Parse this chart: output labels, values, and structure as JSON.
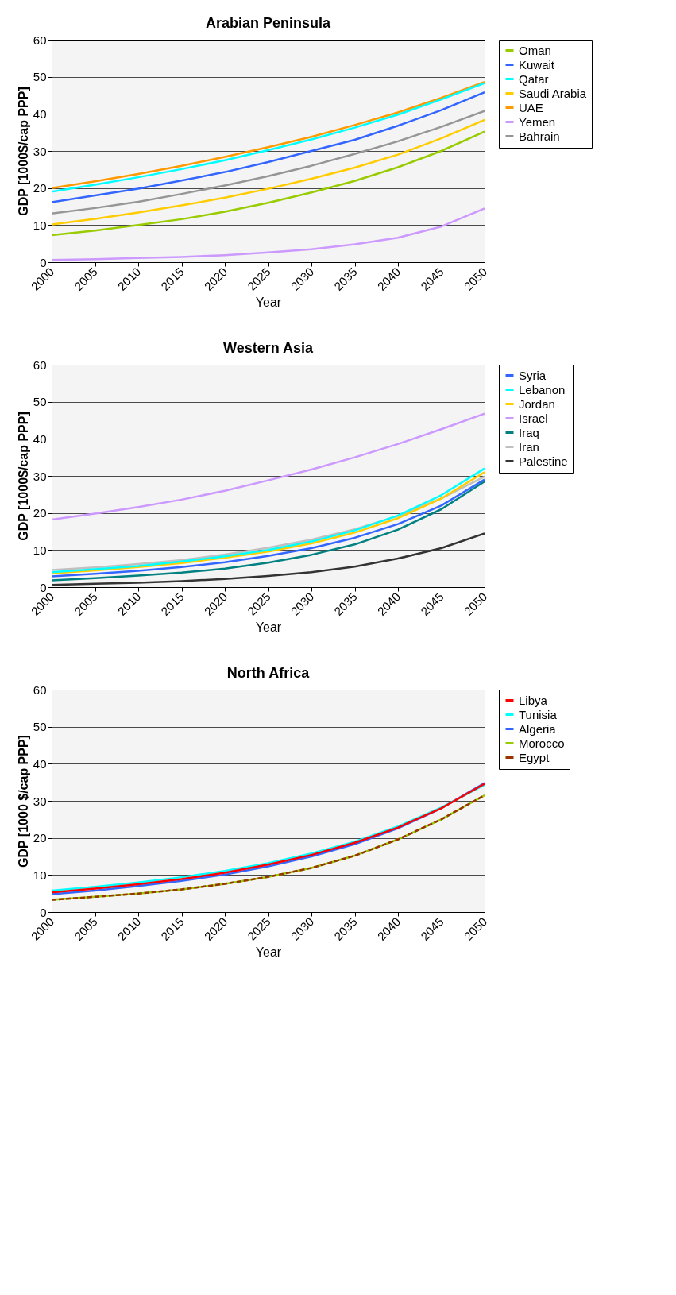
{
  "chart_data": [
    {
      "type": "line",
      "title": "Arabian Peninsula",
      "xlabel": "Year",
      "ylabel": "GDP [1000$/cap PPP]",
      "x": [
        2000,
        2005,
        2010,
        2015,
        2020,
        2025,
        2030,
        2035,
        2040,
        2045,
        2050
      ],
      "xlim": [
        2000,
        2050
      ],
      "xticks": [
        2000,
        2005,
        2010,
        2015,
        2020,
        2025,
        2030,
        2035,
        2040,
        2045,
        2050
      ],
      "ylim": [
        0,
        60
      ],
      "yticks": [
        0,
        10,
        20,
        30,
        40,
        50,
        60
      ],
      "grid": "y",
      "legend": "right",
      "marker": "none",
      "series": [
        {
          "name": "Oman",
          "color": "#99cc00",
          "values": [
            7.3,
            8.5,
            10.0,
            11.6,
            13.6,
            16.0,
            18.8,
            21.9,
            25.6,
            30.0,
            35.2
          ]
        },
        {
          "name": "Kuwait",
          "color": "#3366ff",
          "values": [
            16.2,
            18.0,
            19.8,
            22.0,
            24.3,
            27.0,
            30.0,
            33.0,
            36.8,
            41.0,
            45.8
          ]
        },
        {
          "name": "Qatar",
          "color": "#00ffff",
          "values": [
            19.0,
            20.9,
            22.9,
            25.1,
            27.5,
            30.2,
            33.1,
            36.3,
            39.8,
            43.9,
            48.3
          ]
        },
        {
          "name": "Saudi Arabia",
          "color": "#ffcc00",
          "values": [
            10.2,
            11.7,
            13.4,
            15.3,
            17.4,
            19.8,
            22.5,
            25.5,
            29.0,
            33.4,
            38.4
          ]
        },
        {
          "name": "UAE",
          "color": "#ff9900",
          "values": [
            20.0,
            21.8,
            23.8,
            26.0,
            28.4,
            31.0,
            33.8,
            37.0,
            40.4,
            44.3,
            48.6
          ]
        },
        {
          "name": "Yemen",
          "color": "#cc99ff",
          "values": [
            0.6,
            0.8,
            1.1,
            1.4,
            1.9,
            2.6,
            3.5,
            4.8,
            6.6,
            9.6,
            14.5
          ]
        },
        {
          "name": "Bahrain",
          "color": "#969696",
          "values": [
            13.1,
            14.6,
            16.3,
            18.4,
            20.7,
            23.2,
            26.0,
            29.2,
            32.6,
            36.5,
            40.8
          ]
        }
      ]
    },
    {
      "type": "line",
      "title": "Western Asia",
      "xlabel": "Year",
      "ylabel": "GDP [1000$/cap PPP]",
      "x": [
        2000,
        2005,
        2010,
        2015,
        2020,
        2025,
        2030,
        2035,
        2040,
        2045,
        2050
      ],
      "xlim": [
        2000,
        2050
      ],
      "xticks": [
        2000,
        2005,
        2010,
        2015,
        2020,
        2025,
        2030,
        2035,
        2040,
        2045,
        2050
      ],
      "ylim": [
        0,
        60
      ],
      "yticks": [
        0,
        10,
        20,
        30,
        40,
        50,
        60
      ],
      "grid": "y",
      "legend": "right",
      "marker": "none",
      "series": [
        {
          "name": "Syria",
          "color": "#3366ff",
          "values": [
            2.9,
            3.6,
            4.4,
            5.4,
            6.7,
            8.4,
            10.5,
            13.3,
            17.0,
            22.0,
            29.0
          ]
        },
        {
          "name": "Lebanon",
          "color": "#00ffff",
          "values": [
            4.0,
            4.8,
            5.7,
            6.9,
            8.3,
            10.0,
            12.3,
            15.3,
            19.3,
            24.8,
            32.0
          ]
        },
        {
          "name": "Jordan",
          "color": "#ffcc00",
          "values": [
            3.7,
            4.5,
            5.4,
            6.5,
            7.9,
            9.6,
            11.8,
            14.7,
            18.6,
            23.9,
            31.0
          ]
        },
        {
          "name": "Israel",
          "color": "#cc99ff",
          "values": [
            18.2,
            19.8,
            21.6,
            23.6,
            26.0,
            28.8,
            31.7,
            35.0,
            38.6,
            42.6,
            46.8
          ]
        },
        {
          "name": "Iraq",
          "color": "#008080",
          "values": [
            1.8,
            2.4,
            3.1,
            3.9,
            5.0,
            6.6,
            8.7,
            11.5,
            15.5,
            21.0,
            28.5
          ]
        },
        {
          "name": "Iran",
          "color": "#c0c0c0",
          "values": [
            4.6,
            5.3,
            6.2,
            7.3,
            8.8,
            10.6,
            12.8,
            15.6,
            19.2,
            23.9,
            29.8
          ]
        },
        {
          "name": "Palestine",
          "color": "#333333",
          "values": [
            0.6,
            0.9,
            1.2,
            1.6,
            2.2,
            3.0,
            4.0,
            5.5,
            7.7,
            10.5,
            14.5
          ]
        }
      ]
    },
    {
      "type": "line",
      "title": "North Africa",
      "xlabel": "Year",
      "ylabel": "GDP [1000 $/cap PPP]",
      "x": [
        2000,
        2005,
        2010,
        2015,
        2020,
        2025,
        2030,
        2035,
        2040,
        2045,
        2050
      ],
      "xlim": [
        2000,
        2050
      ],
      "xticks": [
        2000,
        2005,
        2010,
        2015,
        2020,
        2025,
        2030,
        2035,
        2040,
        2045,
        2050
      ],
      "ylim": [
        0,
        60
      ],
      "yticks": [
        0,
        10,
        20,
        30,
        40,
        50,
        60
      ],
      "grid": "y",
      "legend": "right",
      "marker": "none",
      "series": [
        {
          "name": "Libya",
          "color": "#ff0000",
          "values": [
            5.3,
            6.3,
            7.5,
            8.9,
            10.6,
            12.8,
            15.4,
            18.7,
            22.8,
            28.0,
            34.6
          ]
        },
        {
          "name": "Tunisia",
          "color": "#00ffff",
          "values": [
            5.8,
            6.8,
            8.0,
            9.4,
            11.1,
            13.2,
            15.8,
            19.0,
            23.1,
            28.2,
            34.3
          ]
        },
        {
          "name": "Algeria",
          "color": "#3366ff",
          "values": [
            4.8,
            5.8,
            7.0,
            8.4,
            10.1,
            12.3,
            15.0,
            18.3,
            22.6,
            28.0,
            34.8
          ]
        },
        {
          "name": "Morocco",
          "color": "#99cc00",
          "values": [
            3.3,
            4.1,
            5.0,
            6.1,
            7.6,
            9.5,
            11.9,
            15.2,
            19.6,
            25.0,
            31.5
          ]
        },
        {
          "name": "Egypt",
          "color": "#993300",
          "line_style": "dashed",
          "values": [
            3.3,
            4.1,
            5.0,
            6.1,
            7.6,
            9.5,
            11.9,
            15.2,
            19.6,
            25.0,
            31.5
          ]
        }
      ]
    }
  ]
}
